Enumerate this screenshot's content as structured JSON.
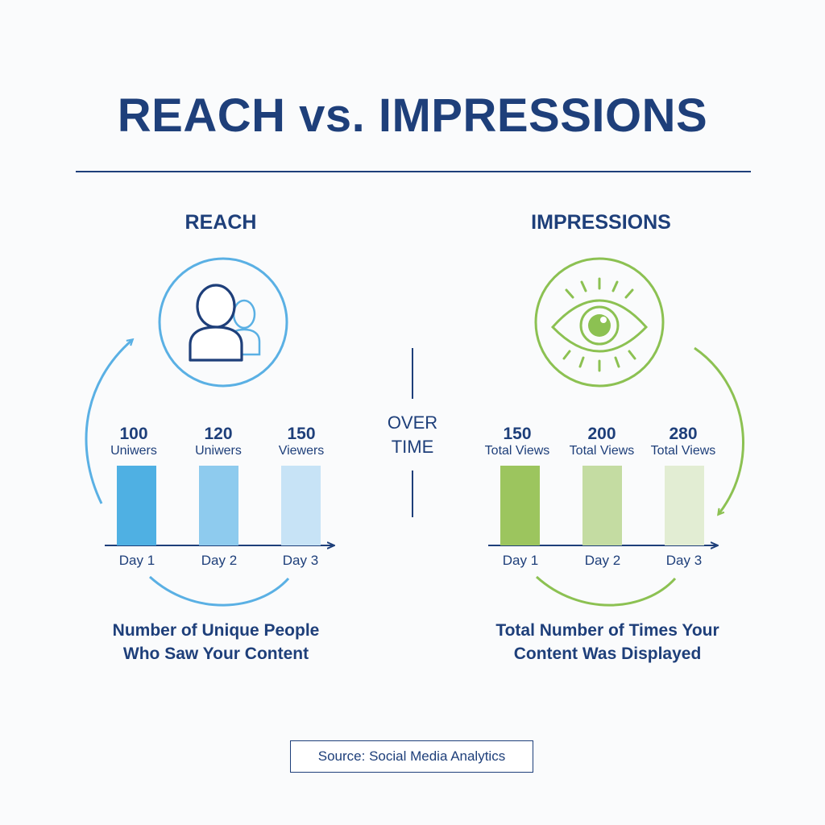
{
  "title": "REACH vs. IMPRESSIONS",
  "center_label": {
    "line1": "OVER",
    "line2": "TIME"
  },
  "source": "Source: Social Media Analytics",
  "colors": {
    "navy": "#1e3f7a",
    "reach_blue": "#5ab0e4",
    "impressions_green": "#8cc152"
  },
  "panels": {
    "reach": {
      "heading": "REACH",
      "icon": "people-icon",
      "description_line1": "Number of Unique People",
      "description_line2": "Who Saw Your Content",
      "bars": [
        {
          "value": "100",
          "unit": "Uniwers",
          "day": "Day 1",
          "color": "#4fb0e3"
        },
        {
          "value": "120",
          "unit": "Uniwers",
          "day": "Day 2",
          "color": "#8ecbee"
        },
        {
          "value": "150",
          "unit": "Viewers",
          "day": "Day 3",
          "color": "#c7e3f6"
        }
      ]
    },
    "impressions": {
      "heading": "IMPRESSIONS",
      "icon": "eye-icon",
      "description_line1": "Total Number of Times Your",
      "description_line2": "Content Was Displayed",
      "bars": [
        {
          "value": "150",
          "unit": "Total Views",
          "day": "Day 1",
          "color": "#9cc55e"
        },
        {
          "value": "200",
          "unit": "Total Views",
          "day": "Day 2",
          "color": "#c4dca2"
        },
        {
          "value": "280",
          "unit": "Total Views",
          "day": "Day 3",
          "color": "#e2edd3"
        }
      ]
    }
  }
}
